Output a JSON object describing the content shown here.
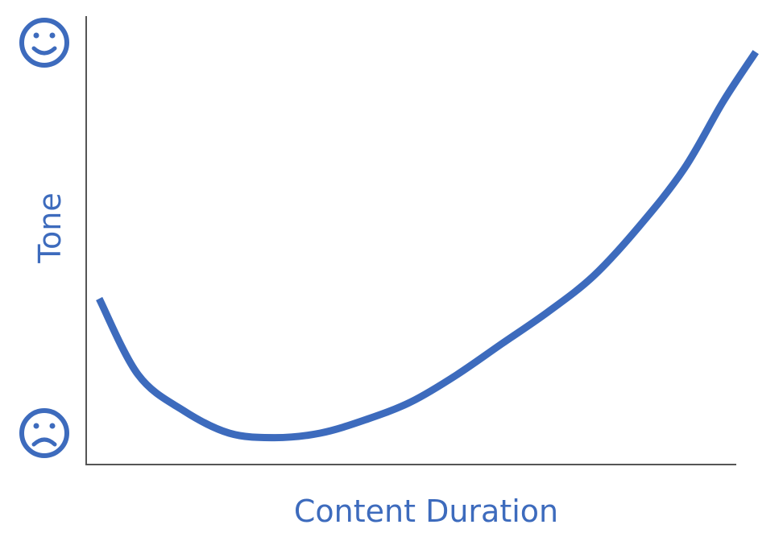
{
  "chart_data": {
    "type": "line",
    "title": "",
    "xlabel": "Content Duration",
    "ylabel": "Tone",
    "y_top_icon": "happy-face-icon",
    "y_bottom_icon": "sad-face-icon",
    "accent_color": "#3d6bbd",
    "axis_color": "#555555",
    "xlim": [
      0,
      100
    ],
    "ylim": [
      0,
      100
    ],
    "grid": false,
    "series": [
      {
        "x": [
          2,
          8,
          15,
          22,
          29,
          36,
          43,
          50,
          57,
          64,
          71,
          78,
          85,
          92,
          98,
          103
        ],
        "y": [
          37,
          20,
          12,
          7,
          6,
          7,
          10,
          14,
          20,
          27,
          34,
          42,
          53,
          66,
          81,
          92
        ]
      }
    ]
  }
}
